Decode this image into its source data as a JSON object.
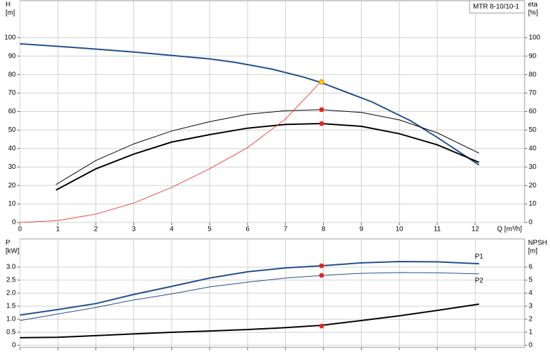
{
  "chart_data": [
    {
      "type": "line",
      "annotation": "MTR 8-10/10-1",
      "ylabel": "H",
      "ylabel_unit": "[m]",
      "y2label": "eta",
      "y2label_unit": "[%]",
      "xlabel": "Q [m³/h]",
      "xlim": [
        0,
        13.3
      ],
      "xticks": [
        0,
        1,
        2,
        3,
        4,
        5,
        6,
        7,
        8,
        9,
        10,
        11,
        12
      ],
      "ylim": [
        0,
        120
      ],
      "yticks": [
        0,
        10,
        20,
        30,
        40,
        50,
        60,
        70,
        80,
        90,
        100
      ],
      "y2lim": [
        0,
        120
      ],
      "y2ticks": [
        0,
        10,
        20,
        30,
        40,
        50,
        60,
        70,
        80,
        90,
        100
      ],
      "grid": true,
      "series": [
        {
          "color": "#1f4e8c",
          "linewidth": 2,
          "x": [
            0,
            1,
            2,
            3,
            4,
            5,
            5.65,
            6.64,
            7.5,
            7.95,
            9.28,
            10.3,
            11,
            12.1
          ],
          "values": [
            96.7,
            95.3,
            93.8,
            92.2,
            90.4,
            88.5,
            86.7,
            83,
            78.5,
            75.6,
            65.2,
            55,
            46,
            31.1
          ]
        },
        {
          "color": "#000000",
          "linewidth": 1,
          "axis": "y2",
          "x": [
            0.95,
            2,
            3,
            4,
            5,
            6,
            7,
            7.95,
            9,
            10,
            11,
            12.1
          ],
          "values": [
            20.5,
            33.5,
            42.5,
            49.5,
            54.5,
            58.5,
            60.5,
            61,
            59.5,
            55.5,
            48.5,
            37.5
          ]
        },
        {
          "color": "#000000",
          "linewidth": 2,
          "axis": "y2",
          "x": [
            0.95,
            2,
            3,
            4,
            5,
            6,
            7,
            7.95,
            9,
            10,
            11,
            12.1
          ],
          "values": [
            17.5,
            29,
            37,
            43.5,
            47.5,
            51,
            53,
            53.5,
            52,
            48,
            42,
            32.5
          ]
        },
        {
          "color": "#e8231f",
          "linewidth": 0.8,
          "x": [
            0,
            1,
            2,
            3,
            4,
            5,
            6,
            7,
            7.95
          ],
          "values": [
            0,
            1,
            4.5,
            10.5,
            19,
            29,
            40.5,
            56,
            76.5
          ]
        }
      ],
      "points": [
        {
          "x": 7.95,
          "y": 61,
          "color": "#e8231f"
        },
        {
          "x": 7.95,
          "y": 53.5,
          "color": "#e8231f"
        },
        {
          "x": 7.95,
          "y": 76,
          "color": "#f5d000"
        }
      ]
    },
    {
      "type": "line",
      "ylabel": "P",
      "ylabel_unit": "[kW]",
      "y2label": "NPSH",
      "y2label_unit": "[m]",
      "xlim": [
        0,
        13.3
      ],
      "xticks": [
        0,
        1,
        2,
        3,
        4,
        5,
        6,
        7,
        8,
        9,
        10,
        11,
        12
      ],
      "ylim": [
        -0.08,
        4.08
      ],
      "yticks": [
        0,
        0.5,
        {
          "value": 1,
          "label": "1.0"
        },
        1.5,
        {
          "value": 2,
          "label": "2.0"
        },
        2.5,
        {
          "value": 3,
          "label": "3.0"
        }
      ],
      "y2lim": [
        -0.16,
        8.16
      ],
      "y2ticks": [
        0,
        1,
        2,
        3,
        4,
        5,
        6
      ],
      "grid": true,
      "series": [
        {
          "name": "P1",
          "color": "#1f4e8c",
          "linewidth": 2,
          "x": [
            0,
            1,
            2,
            3,
            4,
            5,
            6,
            7,
            7.95,
            9,
            10,
            11,
            12.1
          ],
          "values": [
            1.16,
            1.37,
            1.6,
            1.95,
            2.26,
            2.58,
            2.82,
            2.97,
            3.05,
            3.16,
            3.21,
            3.2,
            3.13
          ]
        },
        {
          "name": "P2",
          "color": "#1f4e8c",
          "linewidth": 1,
          "x": [
            0,
            1,
            2,
            3,
            4,
            5,
            6,
            7,
            7.95,
            9,
            10,
            11,
            12.1
          ],
          "values": [
            0.95,
            1.2,
            1.45,
            1.74,
            1.97,
            2.24,
            2.42,
            2.58,
            2.68,
            2.76,
            2.79,
            2.78,
            2.74
          ]
        },
        {
          "color": "#000000",
          "linewidth": 2,
          "axis": "y2",
          "x": [
            0,
            1,
            2,
            3,
            4,
            5,
            6,
            7,
            7.95,
            9,
            10,
            11,
            12.1
          ],
          "values": [
            0.58,
            0.62,
            0.74,
            0.87,
            1.0,
            1.1,
            1.21,
            1.35,
            1.53,
            1.9,
            2.26,
            2.68,
            3.16
          ]
        }
      ],
      "points": [
        {
          "x": 7.95,
          "y": 3.05,
          "color": "#e8231f"
        },
        {
          "x": 7.95,
          "y": 2.68,
          "color": "#e8231f"
        },
        {
          "x": 7.95,
          "y": 0.74,
          "color": "#e8231f"
        }
      ]
    }
  ]
}
